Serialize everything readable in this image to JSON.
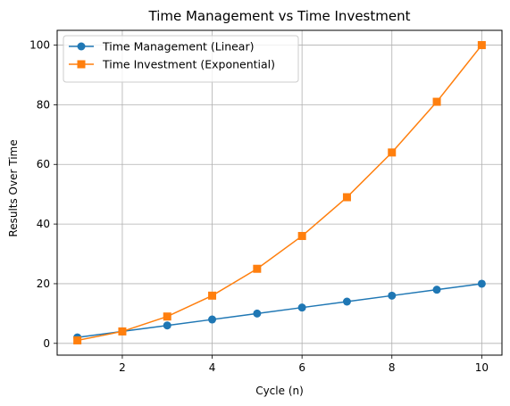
{
  "chart_data": {
    "type": "line",
    "title": "Time Management vs Time Investment",
    "xlabel": "Cycle (n)",
    "ylabel": "Results Over Time",
    "xlim": [
      0.55,
      10.45
    ],
    "ylim": [
      -3.95,
      104.95
    ],
    "xticks": [
      2,
      4,
      6,
      8,
      10
    ],
    "yticks": [
      0,
      20,
      40,
      60,
      80,
      100
    ],
    "grid": true,
    "legend_position": "top-left",
    "x": [
      1,
      2,
      3,
      4,
      5,
      6,
      7,
      8,
      9,
      10
    ],
    "series": [
      {
        "name": "Time Management (Linear)",
        "values": [
          2,
          4,
          6,
          8,
          10,
          12,
          14,
          16,
          18,
          20
        ],
        "color": "#1f77b4",
        "marker": "circle"
      },
      {
        "name": "Time Investment (Exponential)",
        "values": [
          1,
          4,
          9,
          16,
          25,
          36,
          49,
          64,
          81,
          100
        ],
        "color": "#ff7f0e",
        "marker": "square"
      }
    ]
  }
}
